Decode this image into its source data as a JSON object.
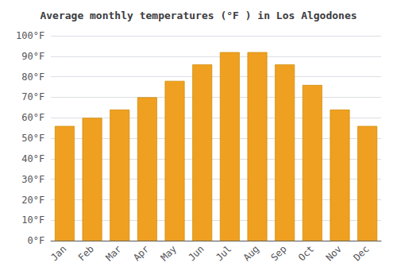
{
  "chart_data": {
    "type": "bar",
    "title": "Average monthly temperatures (°F ) in Los Algodones",
    "categories": [
      "Jan",
      "Feb",
      "Mar",
      "Apr",
      "May",
      "Jun",
      "Jul",
      "Aug",
      "Sep",
      "Oct",
      "Nov",
      "Dec"
    ],
    "values": [
      56,
      60,
      64,
      70,
      78,
      86,
      92,
      92,
      86,
      76,
      64,
      56
    ],
    "color": "#F0A020",
    "ylim": [
      0,
      100
    ],
    "yticks": [
      {
        "value": 0,
        "label": "0°F"
      },
      {
        "value": 10,
        "label": "10°F"
      },
      {
        "value": 20,
        "label": "20°F"
      },
      {
        "value": 30,
        "label": "30°F"
      },
      {
        "value": 40,
        "label": "40°F"
      },
      {
        "value": 50,
        "label": "50°F"
      },
      {
        "value": 60,
        "label": "60°F"
      },
      {
        "value": 70,
        "label": "70°F"
      },
      {
        "value": 80,
        "label": "80°F"
      },
      {
        "value": 90,
        "label": "90°F"
      },
      {
        "value": 100,
        "label": "100°F"
      }
    ],
    "grid": true
  }
}
